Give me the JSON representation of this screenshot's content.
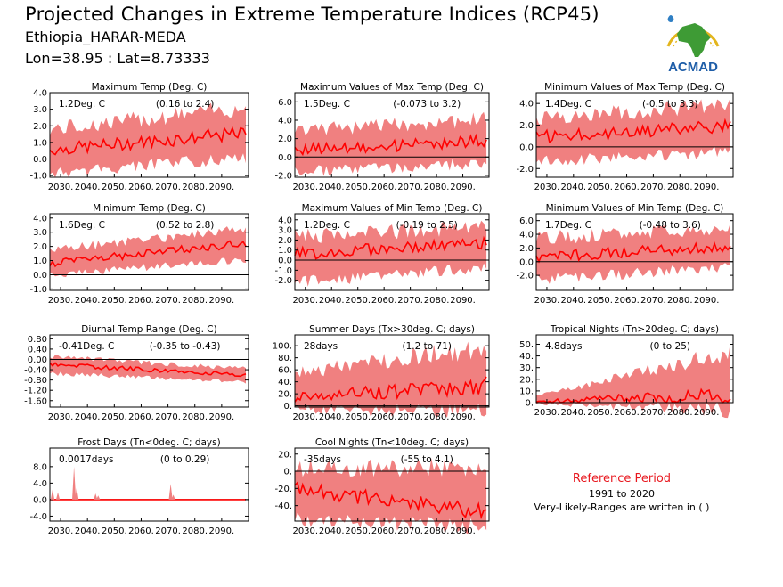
{
  "header": {
    "title": "Projected Changes in Extreme Temperature Indices (RCP45)",
    "location": "Ethiopia_HARAR-MEDA",
    "coordinates": "Lon=38.95 : Lat=8.73333"
  },
  "logo": {
    "text": "ACMAD",
    "icon": "africa-map-logo-icon"
  },
  "reference": {
    "title": "Reference Period",
    "years": "1991 to 2020",
    "note": "Very-Likely-Ranges are written in ( )"
  },
  "colors": {
    "band": "#f08080",
    "line": "#ff0000",
    "zero": "#000000",
    "ref_title": "#e8171e"
  },
  "chart_data": [
    {
      "type": "area",
      "title": "Maximum Temp (Deg. C)",
      "value_label": "1.2Deg. C",
      "range_label": "(0.16 to 2.4)",
      "xlim": [
        2026,
        2100
      ],
      "xticks": [
        2030,
        2040,
        2050,
        2060,
        2070,
        2080,
        2090
      ],
      "xtick_labels": [
        "2030.",
        "2040.",
        "2050.",
        "2060.",
        "2070.",
        "2080.",
        "2090."
      ],
      "ylim": [
        -1.1,
        4.0
      ],
      "yticks": [
        -1.0,
        0.0,
        1.0,
        2.0,
        3.0,
        4.0
      ],
      "ytick_labels": [
        "-1.0",
        "0.0",
        "1.0",
        "2.0",
        "3.0",
        "4.0"
      ],
      "x_start": 2026,
      "x_end": 2099,
      "median_start": 0.55,
      "median_end": 1.55,
      "low_start": -0.5,
      "low_end": 0.5,
      "high_start": 1.6,
      "high_end": 2.9
    },
    {
      "type": "area",
      "title": "Maximum Values of Max Temp (Deg. C)",
      "value_label": "1.5Deg. C",
      "range_label": "(-0.073 to 3.2)",
      "xlim": [
        2026,
        2100
      ],
      "xticks": [
        2030,
        2040,
        2050,
        2060,
        2070,
        2080,
        2090
      ],
      "xtick_labels": [
        "2030.",
        "2040.",
        "2050.",
        "2060.",
        "2070.",
        "2080.",
        "2090."
      ],
      "ylim": [
        -2.2,
        7.0
      ],
      "yticks": [
        -2.0,
        0.0,
        2.0,
        4.0,
        6.0
      ],
      "ytick_labels": [
        "-2.0",
        "0.0",
        "2.0",
        "4.0",
        "6.0"
      ],
      "x_start": 2026,
      "x_end": 2099,
      "median_start": 0.8,
      "median_end": 1.7,
      "low_start": -1.0,
      "low_end": 0.0,
      "high_start": 2.5,
      "high_end": 3.8
    },
    {
      "type": "area",
      "title": "Minimum Values of Max Temp (Deg. C)",
      "value_label": "1.4Deg. C",
      "range_label": "(-0.5 to 3.3)",
      "xlim": [
        2026,
        2100
      ],
      "xticks": [
        2030,
        2040,
        2050,
        2060,
        2070,
        2080,
        2090
      ],
      "xtick_labels": [
        "2030.",
        "2040.",
        "2050.",
        "2060.",
        "2070.",
        "2080.",
        "2090."
      ],
      "ylim": [
        -2.8,
        5.0
      ],
      "yticks": [
        -2.0,
        0.0,
        2.0,
        4.0
      ],
      "ytick_labels": [
        "-2.0",
        "0.0",
        "2.0",
        "4.0"
      ],
      "x_start": 2026,
      "x_end": 2099,
      "median_start": 0.9,
      "median_end": 1.9,
      "low_start": -0.8,
      "low_end": 0.2,
      "high_start": 2.4,
      "high_end": 3.6
    },
    {
      "type": "area",
      "title": "Minimum Temp (Deg. C)",
      "value_label": "1.6Deg. C",
      "range_label": "(0.52 to 2.8)",
      "xlim": [
        2026,
        2100
      ],
      "xticks": [
        2030,
        2040,
        2050,
        2060,
        2070,
        2080,
        2090
      ],
      "xtick_labels": [
        "2030.",
        "2040.",
        "2050.",
        "2060.",
        "2070.",
        "2080.",
        "2090."
      ],
      "ylim": [
        -1.1,
        4.3
      ],
      "yticks": [
        -1.0,
        0.0,
        1.0,
        2.0,
        3.0,
        4.0
      ],
      "ytick_labels": [
        "-1.0",
        "0.0",
        "1.0",
        "2.0",
        "3.0",
        "4.0"
      ],
      "x_start": 2026,
      "x_end": 2099,
      "median_start": 0.8,
      "median_end": 2.25,
      "low_start": 0.2,
      "low_end": 1.4,
      "high_start": 1.6,
      "high_end": 3.1
    },
    {
      "type": "area",
      "title": "Maximum Values of Min Temp (Deg. C)",
      "value_label": "1.2Deg. C",
      "range_label": "(-0.19 to 2.5)",
      "xlim": [
        2026,
        2100
      ],
      "xticks": [
        2030,
        2040,
        2050,
        2060,
        2070,
        2080,
        2090
      ],
      "xtick_labels": [
        "2030.",
        "2040.",
        "2050.",
        "2060.",
        "2070.",
        "2080.",
        "2090."
      ],
      "ylim": [
        -3.0,
        4.6
      ],
      "yticks": [
        -2.0,
        -1.0,
        0.0,
        1.0,
        2.0,
        3.0,
        4.0
      ],
      "ytick_labels": [
        "-2.0",
        "-1.0",
        "0.0",
        "1.0",
        "2.0",
        "3.0",
        "4.0"
      ],
      "x_start": 2026,
      "x_end": 2099,
      "median_start": 0.6,
      "median_end": 1.7,
      "low_start": -1.6,
      "low_end": -0.2,
      "high_start": 2.0,
      "high_end": 3.0
    },
    {
      "type": "area",
      "title": "Minimum Values of Min Temp (Deg. C)",
      "value_label": "1.7Deg. C",
      "range_label": "(-0.48 to 3.6)",
      "xlim": [
        2026,
        2100
      ],
      "xticks": [
        2030,
        2040,
        2050,
        2060,
        2070,
        2080,
        2090
      ],
      "xtick_labels": [
        "2030.",
        "2040.",
        "2050.",
        "2060.",
        "2070.",
        "2080.",
        "2090."
      ],
      "ylim": [
        -4.2,
        7.0
      ],
      "yticks": [
        -2.0,
        0.0,
        2.0,
        4.0,
        6.0
      ],
      "ytick_labels": [
        "-2.0",
        "0.0",
        "2.0",
        "4.0",
        "6.0"
      ],
      "x_start": 2026,
      "x_end": 2099,
      "median_start": 0.7,
      "median_end": 2.2,
      "low_start": -1.8,
      "low_end": 0.0,
      "high_start": 3.0,
      "high_end": 4.4
    },
    {
      "type": "area",
      "title": "Diurnal Temp Range (Deg. C)",
      "value_label": "-0.41Deg. C",
      "range_label": "(-0.35 to -0.43)",
      "xlim": [
        2026,
        2100
      ],
      "xticks": [
        2030,
        2040,
        2050,
        2060,
        2070,
        2080,
        2090
      ],
      "xtick_labels": [
        "2030.",
        "2040.",
        "2050.",
        "2060.",
        "2070.",
        "2080.",
        "2090."
      ],
      "ylim": [
        -1.85,
        0.95
      ],
      "yticks": [
        -1.6,
        -1.2,
        -0.8,
        -0.4,
        0.0,
        0.4,
        0.8
      ],
      "ytick_labels": [
        "-1.60",
        "-1.20",
        "-0.80",
        "-0.40",
        "0.00",
        "0.40",
        "0.80"
      ],
      "x_start": 2026,
      "x_end": 2099,
      "median_start": -0.2,
      "median_end": -0.6,
      "low_start": -0.45,
      "low_end": -0.8,
      "high_start": 0.05,
      "high_end": -0.4
    },
    {
      "type": "area",
      "title": "Summer Days (Tx>30deg. C; days)",
      "value_label": "28days",
      "range_label": "(1.2 to 71)",
      "xlim": [
        2026,
        2100
      ],
      "xticks": [
        2030,
        2040,
        2050,
        2060,
        2070,
        2080,
        2090
      ],
      "xtick_labels": [
        "2030.",
        "2040.",
        "2050.",
        "2060.",
        "2070.",
        "2080.",
        "2090."
      ],
      "ylim": [
        -2,
        118
      ],
      "yticks": [
        0,
        20,
        40,
        60,
        80,
        100
      ],
      "ytick_labels": [
        "0.",
        "20.",
        "40.",
        "60.",
        "80.",
        "100."
      ],
      "x_start": 2026,
      "x_end": 2099,
      "median_start": 14,
      "median_end": 34,
      "low_start": 2,
      "low_end": 5,
      "high_start": 50,
      "high_end": 90
    },
    {
      "type": "area",
      "title": "Tropical Nights (Tn>20deg. C; days)",
      "value_label": "4.8days",
      "range_label": "(0 to 25)",
      "xlim": [
        2026,
        2100
      ],
      "xticks": [
        2030,
        2040,
        2050,
        2060,
        2070,
        2080,
        2090
      ],
      "xtick_labels": [
        "2030.",
        "2040.",
        "2050.",
        "2060.",
        "2070.",
        "2080.",
        "2090."
      ],
      "ylim": [
        0,
        58
      ],
      "yticks": [
        0,
        10,
        20,
        30,
        40,
        50
      ],
      "ytick_labels": [
        "0.",
        "10.",
        "20.",
        "30.",
        "40.",
        "50."
      ],
      "x_start": 2026,
      "x_end": 2099,
      "median_start": 1,
      "median_end": 7,
      "low_start": 0,
      "low_end": 0.5,
      "high_start": 5,
      "high_end": 40
    },
    {
      "type": "area",
      "title": "Frost Days (Tn<0deg. C; days)",
      "value_label": "0.0017days",
      "range_label": "(0 to 0.29)",
      "xlim": [
        2026,
        2100
      ],
      "xticks": [
        2030,
        2040,
        2050,
        2060,
        2070,
        2080,
        2090
      ],
      "xtick_labels": [
        "2030.",
        "2040.",
        "2050.",
        "2060.",
        "2070.",
        "2080.",
        "2090."
      ],
      "ylim": [
        -5.2,
        12.5
      ],
      "yticks": [
        -4.0,
        0.0,
        4.0,
        8.0
      ],
      "ytick_labels": [
        "-4.0",
        "0.0",
        "4.0",
        "8.0"
      ],
      "x_start": 2026,
      "x_end": 2099,
      "median_start": 0,
      "median_end": 0,
      "low_start": 0,
      "low_end": 0,
      "high_start": 0,
      "high_end": 0
    },
    {
      "type": "area",
      "title": "Cool Nights (Tn<10deg. C; days)",
      "value_label": "-35days",
      "range_label": "(-55 to 4.1)",
      "xlim": [
        2026,
        2100
      ],
      "xticks": [
        2030,
        2040,
        2050,
        2060,
        2070,
        2080,
        2090
      ],
      "xtick_labels": [
        "2030.",
        "2040.",
        "2050.",
        "2060.",
        "2070.",
        "2080.",
        "2090."
      ],
      "ylim": [
        -58,
        27
      ],
      "yticks": [
        -40,
        -20,
        0,
        20
      ],
      "ytick_labels": [
        "-40.",
        "-20.",
        "0.",
        "20."
      ],
      "x_start": 2026,
      "x_end": 2099,
      "median_start": -20,
      "median_end": -48,
      "low_start": -48,
      "low_end": -55,
      "high_start": 0,
      "high_end": 0
    }
  ]
}
